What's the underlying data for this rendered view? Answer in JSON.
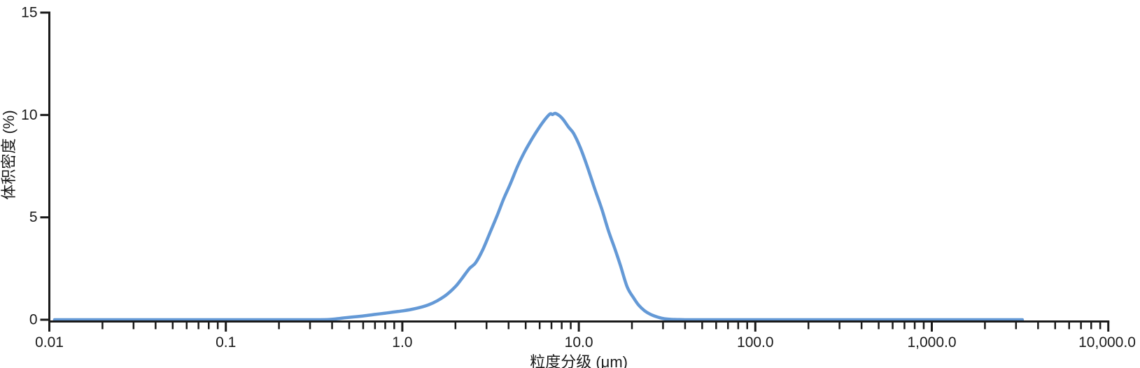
{
  "chart_data": {
    "type": "line",
    "title": "",
    "xlabel": "粒度分级 (μm)",
    "ylabel": "体积密度 (%)",
    "x_scale": "log",
    "xlim": [
      0.01,
      10000
    ],
    "ylim": [
      0,
      15
    ],
    "grid": false,
    "legend": "none",
    "y_ticks": [
      0,
      5,
      10,
      15
    ],
    "y_tick_labels": [
      "0",
      "5",
      "10",
      "15"
    ],
    "x_major_ticks": [
      0.01,
      0.1,
      1,
      10,
      100,
      1000,
      10000
    ],
    "x_tick_labels": [
      "0.01",
      "0.1",
      "1.0",
      "10.0",
      "100.0",
      "1,000.0",
      "10,000.0"
    ],
    "x_minor_ticks": "log-decades 2-9",
    "line_color": "#6499D6",
    "axis_color": "#1A1A1A",
    "text_color": "#1A1A1A",
    "background_color": "#FFFFFF",
    "peak": {
      "size_um": 7.2,
      "density_pct": 10.1
    },
    "series": [
      {
        "name": "体积密度",
        "x": [
          0.0107,
          0.015,
          0.02,
          0.03,
          0.05,
          0.08,
          0.12,
          0.2,
          0.3,
          0.38,
          0.43,
          0.48,
          0.55,
          0.62,
          0.7,
          0.8,
          0.9,
          1.0,
          1.12,
          1.26,
          1.41,
          1.58,
          1.78,
          2.0,
          2.17,
          2.4,
          2.6,
          2.85,
          3.12,
          3.45,
          3.75,
          4.1,
          4.5,
          4.93,
          5.4,
          5.77,
          6.2,
          6.6,
          6.9,
          7.1,
          7.35,
          7.8,
          8.2,
          8.76,
          9.34,
          10.2,
          11.2,
          12.3,
          13.5,
          14.7,
          16.1,
          17.2,
          18.8,
          20.5,
          21.8,
          23.5,
          25.4,
          27.5,
          30,
          33,
          36,
          40,
          50,
          70,
          100,
          150,
          250,
          400,
          700,
          1200,
          2000,
          3260
        ],
        "y": [
          0,
          0,
          0,
          0,
          0,
          0,
          0,
          0,
          0,
          0.01,
          0.05,
          0.1,
          0.15,
          0.2,
          0.26,
          0.32,
          0.38,
          0.43,
          0.5,
          0.6,
          0.73,
          0.93,
          1.22,
          1.62,
          2.0,
          2.5,
          2.78,
          3.4,
          4.2,
          5.1,
          5.9,
          6.65,
          7.5,
          8.2,
          8.8,
          9.2,
          9.6,
          9.9,
          10.06,
          10.02,
          10.08,
          9.95,
          9.75,
          9.4,
          9.1,
          8.4,
          7.45,
          6.4,
          5.4,
          4.36,
          3.4,
          2.66,
          1.6,
          1.05,
          0.72,
          0.45,
          0.27,
          0.15,
          0.06,
          0.02,
          0.01,
          0,
          0,
          0,
          0,
          0,
          0,
          0,
          0,
          0,
          0,
          0
        ]
      }
    ]
  }
}
